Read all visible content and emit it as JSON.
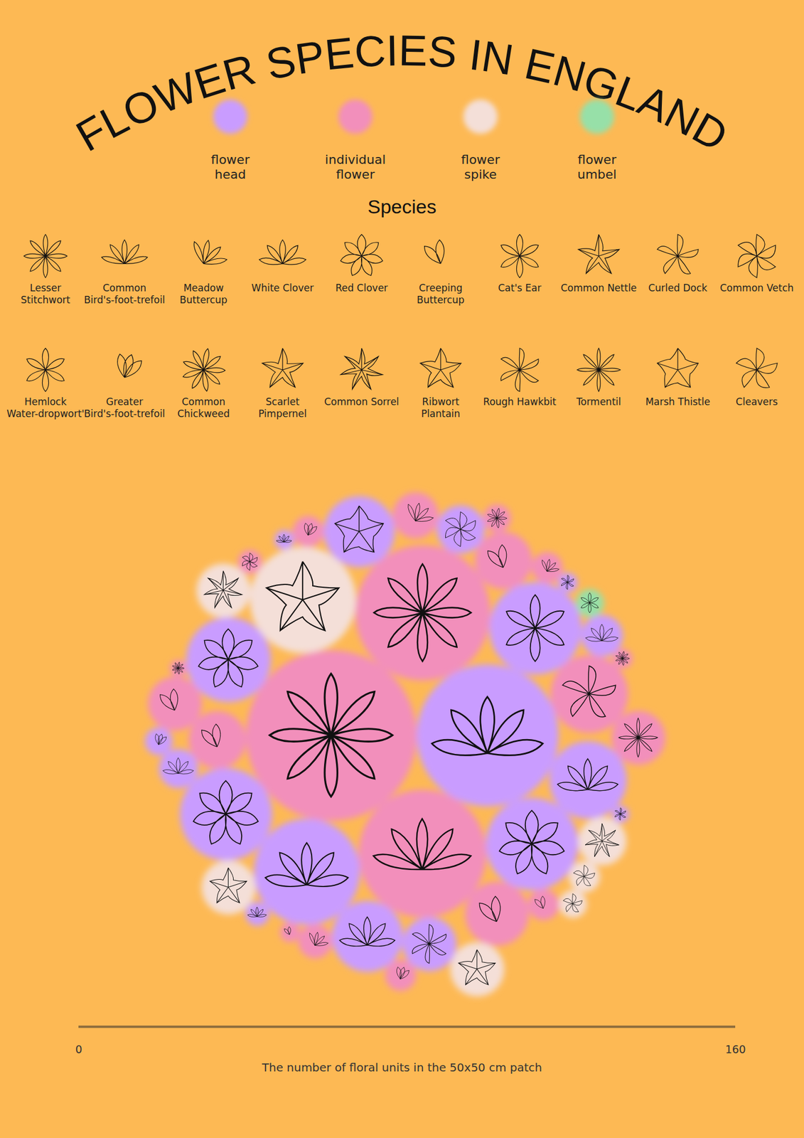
{
  "chart_data": {
    "type": "bubble",
    "title": "FLOWER SPECIES IN ENGLAND",
    "types": [
      {
        "name": "flower head",
        "color": "#c99cff"
      },
      {
        "name": "individual flower",
        "color": "#f28fbb"
      },
      {
        "name": "flower spike",
        "color": "#f4dfd8"
      },
      {
        "name": "flower umbel",
        "color": "#97e0a8"
      }
    ],
    "species_title": "Species",
    "species": [
      "Lesser Stitchwort",
      "Common Bird's-foot-trefoil",
      "Meadow Buttercup",
      "White Clover",
      "Red Clover",
      "Creeping Buttercup",
      "Cat's Ear",
      "Common Nettle",
      "Curled Dock",
      "Common Vetch",
      "Hemlock Water-dropwort'",
      "Greater Bird's-foot-trefoil",
      "Common Chickweed",
      "Scarlet Pimpernel",
      "Common Sorrel",
      "Ribwort Plantain",
      "Rough Hawkbit",
      "Tormentil",
      "Marsh Thistle",
      "Cleavers"
    ],
    "bubbles": [
      {
        "species": "Lesser Stitchwort",
        "type": "individual flower",
        "value": 150
      },
      {
        "species": "White Clover",
        "type": "flower head",
        "value": 104
      },
      {
        "species": "Lesser Stitchwort",
        "type": "individual flower",
        "value": 94
      },
      {
        "species": "Common Bird's-foot-trefoil",
        "type": "individual flower",
        "value": 84
      },
      {
        "species": "White Clover",
        "type": "flower head",
        "value": 58
      },
      {
        "species": "Ribwort Plantain",
        "type": "flower spike",
        "value": 58
      },
      {
        "species": "Red Clover",
        "type": "flower head",
        "value": 44
      },
      {
        "species": "Cat's Ear",
        "type": "flower head",
        "value": 44
      },
      {
        "species": "Red Clover",
        "type": "flower head",
        "value": 44
      },
      {
        "species": "Red Clover",
        "type": "flower head",
        "value": 37
      },
      {
        "species": "White Clover",
        "type": "flower head",
        "value": 31
      },
      {
        "species": "Curled Dock",
        "type": "individual flower",
        "value": 31
      },
      {
        "species": "White Clover",
        "type": "flower head",
        "value": 26
      },
      {
        "species": "Marsh Thistle",
        "type": "flower head",
        "value": 26
      },
      {
        "species": "Creeping Buttercup",
        "type": "individual flower",
        "value": 21
      },
      {
        "species": "Creeping Buttercup",
        "type": "individual flower",
        "value": 17
      },
      {
        "species": "Creeping Buttercup",
        "type": "individual flower",
        "value": 17
      },
      {
        "species": "Creeping Buttercup",
        "type": "individual flower",
        "value": 15
      },
      {
        "species": "Tormentil",
        "type": "individual flower",
        "value": 15
      },
      {
        "species": "Rough Hawkbit",
        "type": "flower head",
        "value": 15
      },
      {
        "species": "Ribwort Plantain",
        "type": "flower spike",
        "value": 15
      },
      {
        "species": "Common Sorrel",
        "type": "flower spike",
        "value": 15
      },
      {
        "species": "Ribwort Plantain",
        "type": "flower spike",
        "value": 15
      },
      {
        "species": "Common Sorrel",
        "type": "flower spike",
        "value": 12
      },
      {
        "species": "Common Vetch",
        "type": "flower head",
        "value": 12
      },
      {
        "species": "Meadow Buttercup",
        "type": "individual flower",
        "value": 11
      },
      {
        "species": "White Clover",
        "type": "flower head",
        "value": 9
      },
      {
        "species": "White Clover",
        "type": "flower head",
        "value": 8
      },
      {
        "species": "Meadow Buttercup",
        "type": "individual flower",
        "value": 6
      },
      {
        "species": "Creeping Buttercup",
        "type": "individual flower",
        "value": 5
      },
      {
        "species": "Meadow Buttercup",
        "type": "individual flower",
        "value": 5
      },
      {
        "species": "Greater Bird's-foot-trefoil",
        "type": "individual flower",
        "value": 5
      },
      {
        "species": "Greater Bird's-foot-trefoil",
        "type": "individual flower",
        "value": 5
      },
      {
        "species": "Cleavers",
        "type": "flower spike",
        "value": 5
      },
      {
        "species": "Hemlock Water-dropwort'",
        "type": "flower umbel",
        "value": 4
      },
      {
        "species": "Cleavers",
        "type": "flower spike",
        "value": 4
      },
      {
        "species": "Common Chickweed",
        "type": "individual flower",
        "value": 4
      },
      {
        "species": "Greater Bird's-foot-trefoil",
        "type": "flower head",
        "value": 4
      },
      {
        "species": "Common Vetch",
        "type": "individual flower",
        "value": 3
      },
      {
        "species": "White Clover",
        "type": "flower head",
        "value": 3
      },
      {
        "species": "Rough Hawkbit",
        "type": "flower head",
        "value": 2
      },
      {
        "species": "Creeping Buttercup",
        "type": "individual flower",
        "value": 2
      },
      {
        "species": "Common Chickweed",
        "type": "individual flower",
        "value": 2
      },
      {
        "species": "White Clover",
        "type": "flower head",
        "value": 2
      },
      {
        "species": "Rough Hawkbit",
        "type": "flower head",
        "value": 1.5
      },
      {
        "species": "Common Chickweed",
        "type": "individual flower",
        "value": 1.5
      }
    ],
    "size_axis": {
      "label": "The number of floral units in the 50x50 cm patch",
      "lim": [
        0,
        160
      ],
      "ticks": [
        0,
        160
      ]
    }
  }
}
